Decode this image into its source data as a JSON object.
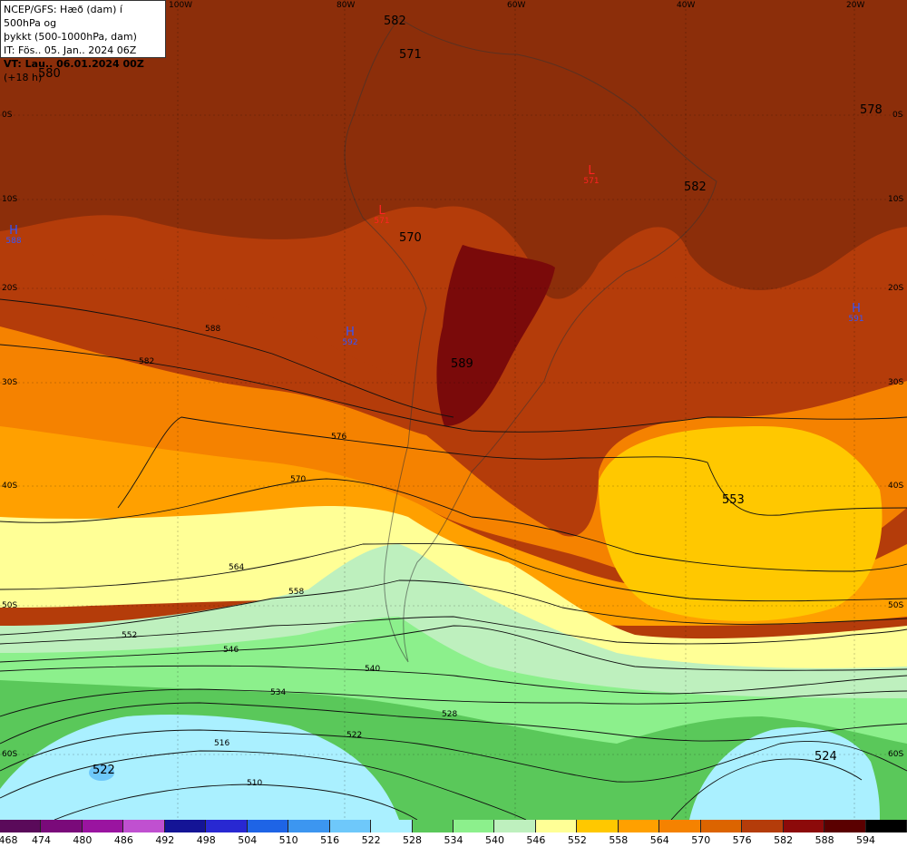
{
  "title_box": {
    "line1": "NCEP/GFS: Hæð (dam) í 500hPa og",
    "line2": "þykkt (500-1000hPa, dam)",
    "line3": "IT: Fös.. 05. Jan.. 2024 06Z",
    "line4_bold": "VT: Lau.. 06.01.2024 00Z",
    "line4_rest": " (+18 h)"
  },
  "longitude_labels": [
    "100W",
    "80W",
    "60W",
    "40W",
    "20W"
  ],
  "latitude_labels_left": [
    "0S",
    "10S",
    "20S",
    "30S",
    "40S",
    "50S",
    "60S"
  ],
  "latitude_labels_right": [
    "0S",
    "10S",
    "20S",
    "30S",
    "40S",
    "50S",
    "60S"
  ],
  "height_labels": [
    "582",
    "571",
    "580",
    "578",
    "582",
    "570",
    "589",
    "553",
    "524",
    "522"
  ],
  "pressure_centers": [
    {
      "type": "H",
      "value": "588",
      "color": "#3355ff"
    },
    {
      "type": "H",
      "value": "592",
      "color": "#3355ff"
    },
    {
      "type": "H",
      "value": "591",
      "color": "#3355ff"
    },
    {
      "type": "L",
      "value": "571",
      "color": "#ff2222"
    },
    {
      "type": "L",
      "value": "571",
      "color": "#ff2222"
    }
  ],
  "contour_labels": [
    "588",
    "582",
    "576",
    "570",
    "564",
    "558",
    "552",
    "546",
    "540",
    "534",
    "528",
    "522",
    "516",
    "510"
  ],
  "colorbar": {
    "colors": [
      "#5a0a5a",
      "#7a0a7a",
      "#9a14a0",
      "#c050d0",
      "#141496",
      "#2828d2",
      "#1e64e6",
      "#3c96f0",
      "#6ec8fa",
      "#aaf0ff",
      "#5ac85a",
      "#8cf08c",
      "#bef0be",
      "#ffff96",
      "#ffc800",
      "#ffa000",
      "#f58200",
      "#dc6400",
      "#b43c0a",
      "#8c0a0a",
      "#5a0000",
      "#000000"
    ],
    "labels": [
      "468",
      "474",
      "480",
      "486",
      "492",
      "498",
      "504",
      "510",
      "516",
      "522",
      "528",
      "534",
      "540",
      "546",
      "552",
      "558",
      "564",
      "570",
      "576",
      "582",
      "588",
      "594"
    ]
  }
}
